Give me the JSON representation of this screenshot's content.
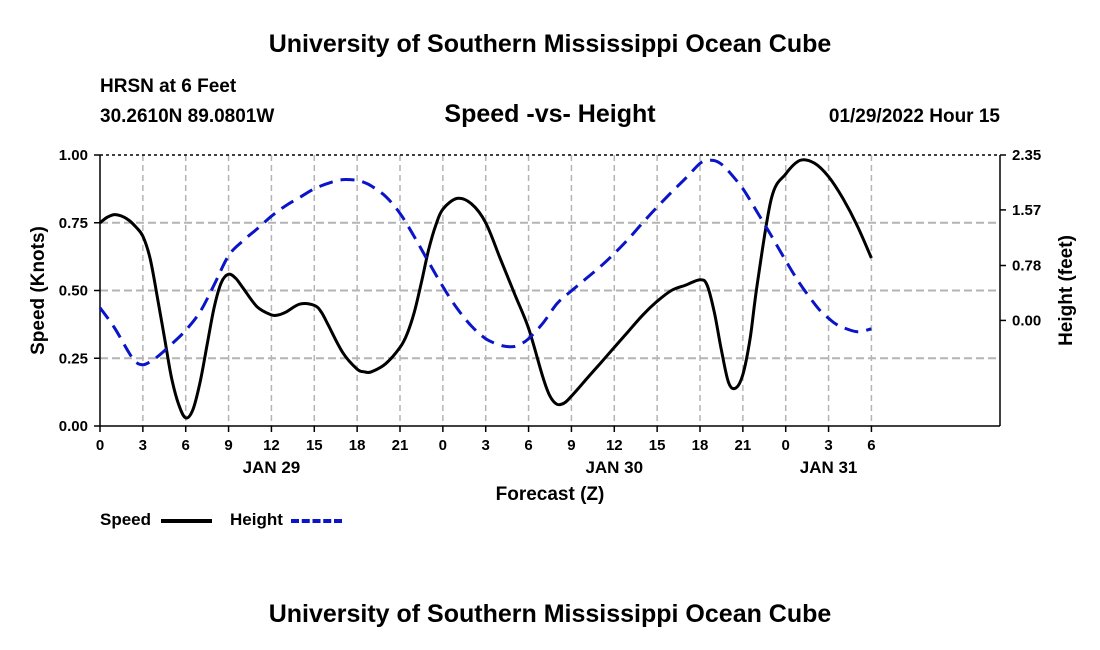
{
  "header": {
    "title": "University of Southern Mississippi Ocean Cube",
    "station": "HRSN at 6 Feet",
    "coords": "30.2610N  89.0801W",
    "subtitle": "Speed -vs- Height",
    "datetime": "01/29/2022 Hour 15"
  },
  "footer": {
    "title": "University of Southern Mississippi Ocean Cube"
  },
  "legend": {
    "speed_label": "Speed",
    "height_label": "Height"
  },
  "colors": {
    "speed": "#000000",
    "height": "#0a14c8",
    "grid": "#b4b4b4"
  },
  "chart_data": {
    "type": "line",
    "xlabel": "Forecast (Z)",
    "ylabel_left": "Speed (Knots)",
    "ylabel_right": "Height (feet)",
    "xlim": [
      0,
      63
    ],
    "ylim_left": [
      0,
      1
    ],
    "ylim_right": [
      -1.5,
      2.35
    ],
    "x_ticks": [
      {
        "x": 0,
        "label": "0"
      },
      {
        "x": 3,
        "label": "3"
      },
      {
        "x": 6,
        "label": "6"
      },
      {
        "x": 9,
        "label": "9"
      },
      {
        "x": 12,
        "label": "12"
      },
      {
        "x": 15,
        "label": "15"
      },
      {
        "x": 18,
        "label": "18"
      },
      {
        "x": 21,
        "label": "21"
      },
      {
        "x": 24,
        "label": "0"
      },
      {
        "x": 27,
        "label": "3"
      },
      {
        "x": 30,
        "label": "6"
      },
      {
        "x": 33,
        "label": "9"
      },
      {
        "x": 36,
        "label": "12"
      },
      {
        "x": 39,
        "label": "15"
      },
      {
        "x": 42,
        "label": "18"
      },
      {
        "x": 45,
        "label": "21"
      },
      {
        "x": 48,
        "label": "0"
      },
      {
        "x": 51,
        "label": "3"
      },
      {
        "x": 54,
        "label": "6"
      }
    ],
    "date_labels": [
      {
        "x": 12,
        "label": "JAN 29"
      },
      {
        "x": 36,
        "label": "JAN 30"
      },
      {
        "x": 51,
        "label": "JAN 31"
      }
    ],
    "y_ticks_left": [
      {
        "value": 0.0,
        "label": "0.00"
      },
      {
        "value": 0.25,
        "label": "0.25"
      },
      {
        "value": 0.5,
        "label": "0.50"
      },
      {
        "value": 0.75,
        "label": "0.75"
      },
      {
        "value": 1.0,
        "label": "1.00"
      }
    ],
    "y_ticks_right": [
      {
        "value": 0.0,
        "label": "0.00"
      },
      {
        "value": 0.78,
        "label": "0.78"
      },
      {
        "value": 1.57,
        "label": "1.57"
      },
      {
        "value": 2.35,
        "label": "2.35"
      }
    ],
    "series": [
      {
        "name": "Speed",
        "axis": "left",
        "style": "solid",
        "x": [
          0,
          0.5,
          1,
          1.5,
          2,
          2.5,
          3,
          3.5,
          4,
          4.5,
          5,
          5.5,
          6,
          6.5,
          7,
          7.5,
          8,
          8.5,
          9,
          9.5,
          10,
          11,
          12,
          12.5,
          13,
          14,
          15,
          15.5,
          16,
          17,
          18,
          18.5,
          19,
          20,
          21,
          21.5,
          22,
          22.5,
          23,
          23.5,
          24,
          25,
          26,
          27,
          28,
          29,
          30,
          31,
          31.5,
          32,
          32.5,
          33,
          34,
          35,
          36,
          37,
          38,
          39,
          40,
          41,
          42,
          42.5,
          43,
          43.5,
          44,
          44.5,
          45,
          45.5,
          46,
          47,
          48,
          49,
          50,
          51,
          52,
          53,
          54
        ],
        "values": [
          0.75,
          0.77,
          0.78,
          0.775,
          0.76,
          0.735,
          0.7,
          0.62,
          0.48,
          0.33,
          0.18,
          0.08,
          0.03,
          0.06,
          0.16,
          0.3,
          0.44,
          0.53,
          0.56,
          0.545,
          0.51,
          0.44,
          0.41,
          0.41,
          0.42,
          0.45,
          0.445,
          0.42,
          0.37,
          0.27,
          0.21,
          0.2,
          0.2,
          0.23,
          0.29,
          0.34,
          0.42,
          0.53,
          0.65,
          0.74,
          0.8,
          0.84,
          0.82,
          0.75,
          0.62,
          0.49,
          0.36,
          0.18,
          0.11,
          0.08,
          0.085,
          0.11,
          0.17,
          0.23,
          0.29,
          0.35,
          0.41,
          0.46,
          0.5,
          0.52,
          0.54,
          0.52,
          0.42,
          0.28,
          0.16,
          0.14,
          0.19,
          0.32,
          0.52,
          0.84,
          0.93,
          0.98,
          0.97,
          0.92,
          0.84,
          0.74,
          0.62
        ]
      },
      {
        "name": "Height",
        "axis": "right",
        "style": "dashed",
        "x": [
          0,
          1,
          2,
          2.5,
          3,
          3.5,
          4,
          5,
          6,
          7,
          8,
          9,
          10,
          11,
          12,
          13,
          14,
          15,
          16,
          16.5,
          17,
          17.5,
          18,
          18.5,
          19,
          20,
          21,
          22,
          23,
          24,
          25,
          26,
          27,
          28,
          28.5,
          29,
          29.5,
          30,
          31,
          32,
          33,
          34,
          35,
          36,
          37,
          38,
          39,
          40,
          41,
          42,
          42.5,
          43,
          43.5,
          44,
          45,
          46,
          47,
          48,
          49,
          50,
          50.5,
          51,
          51.5,
          52,
          53,
          54
        ],
        "values": [
          0.18,
          -0.1,
          -0.45,
          -0.59,
          -0.63,
          -0.59,
          -0.52,
          -0.34,
          -0.14,
          0.12,
          0.51,
          0.92,
          1.13,
          1.3,
          1.48,
          1.63,
          1.75,
          1.87,
          1.95,
          1.98,
          2.0,
          2.0,
          1.99,
          1.96,
          1.91,
          1.76,
          1.52,
          1.19,
          0.83,
          0.48,
          0.17,
          -0.08,
          -0.26,
          -0.35,
          -0.37,
          -0.37,
          -0.33,
          -0.26,
          -0.04,
          0.24,
          0.42,
          0.59,
          0.76,
          0.95,
          1.16,
          1.39,
          1.61,
          1.82,
          2.02,
          2.23,
          2.27,
          2.27,
          2.22,
          2.12,
          1.87,
          1.54,
          1.2,
          0.85,
          0.52,
          0.24,
          0.12,
          0.03,
          -0.05,
          -0.1,
          -0.16,
          -0.12
        ]
      }
    ]
  }
}
